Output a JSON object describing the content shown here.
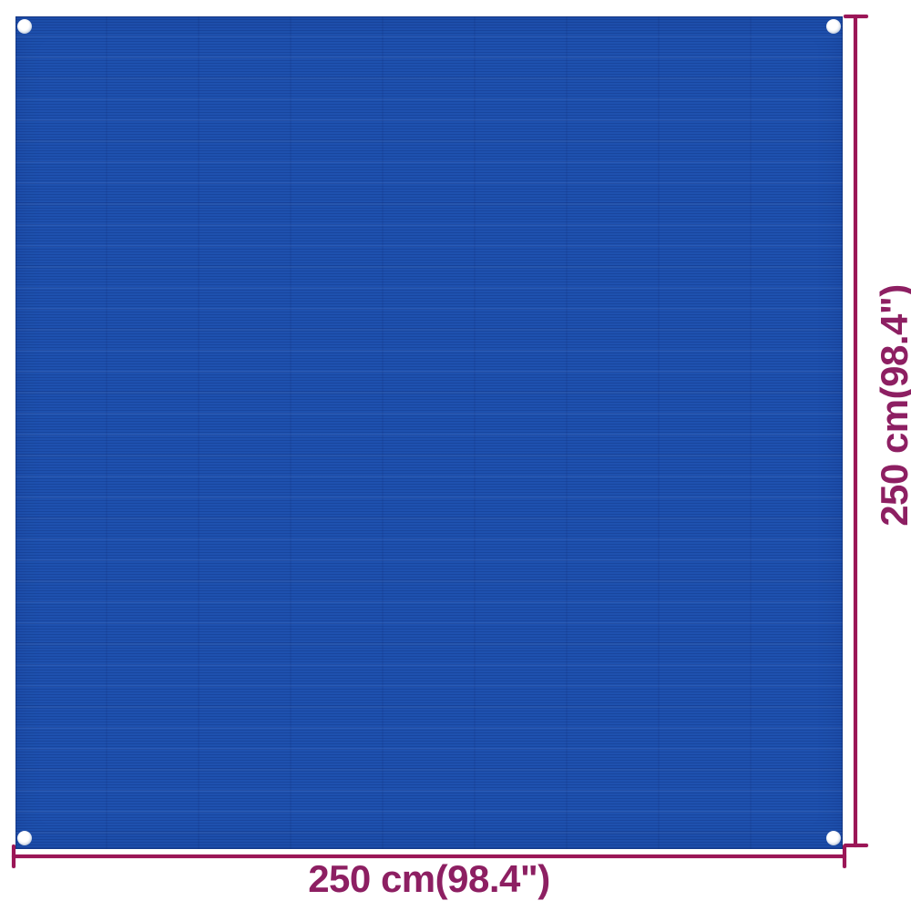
{
  "colors": {
    "background": "#ffffff",
    "fabric_blue": "#1e51af",
    "dimension_magenta": "#9b1657",
    "label_magenta": "#8d1f62"
  },
  "fabric": {
    "grommets": [
      {
        "name": "top-left"
      },
      {
        "name": "top-right"
      },
      {
        "name": "bottom-left"
      },
      {
        "name": "bottom-right"
      }
    ]
  },
  "dimensions": {
    "bottom": {
      "label": "250 cm(98.4\")"
    },
    "right": {
      "label": "250 cm(98.4\")"
    }
  }
}
